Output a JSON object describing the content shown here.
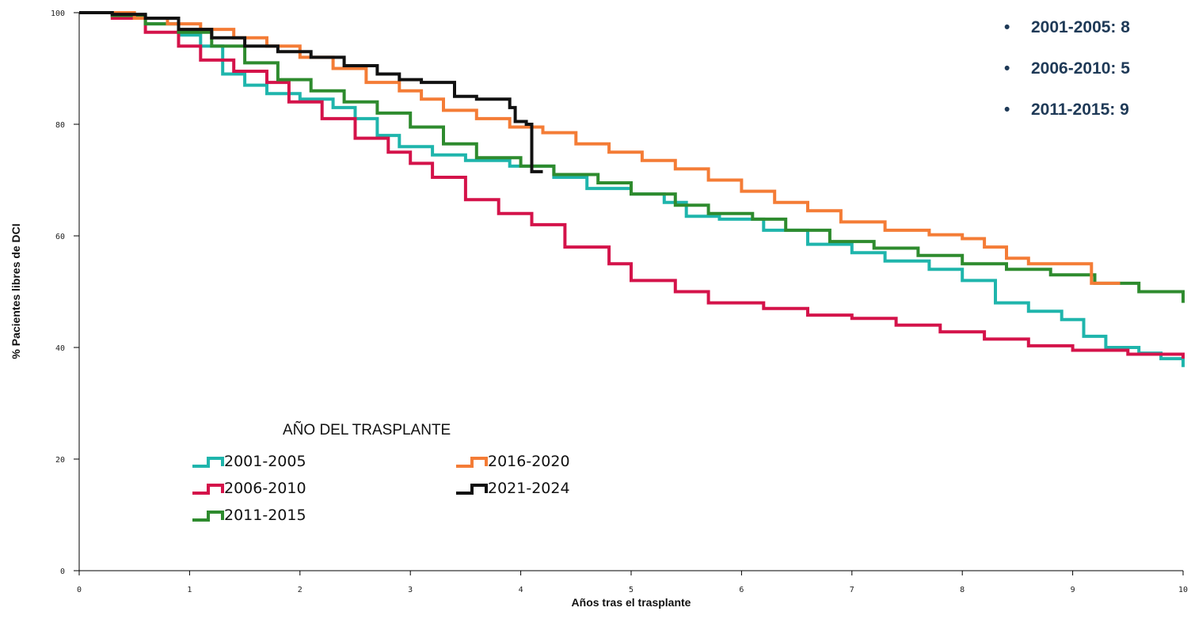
{
  "chart_data": {
    "type": "line",
    "title": "",
    "xlabel": "Años tras el trasplante",
    "ylabel": "% Pacientes libres de DCI",
    "xlim": [
      0,
      10
    ],
    "ylim": [
      0,
      100
    ],
    "x_ticks": [
      "0",
      "1",
      "2",
      "3",
      "4",
      "5",
      "6",
      "7",
      "8",
      "9",
      "10"
    ],
    "y_ticks": [
      "0",
      "20",
      "40",
      "60",
      "80",
      "100"
    ],
    "grid": false,
    "step": true,
    "legend": {
      "title": "AÑO DEL TRASPLANTE",
      "placement": "bottom-left",
      "columns": [
        [
          "2001-2005",
          "2006-2010",
          "2011-2015"
        ],
        [
          "2016-2020",
          "2021-2024"
        ]
      ]
    },
    "series": [
      {
        "name": "2001-2005",
        "color": "#1fb5ac",
        "points": [
          [
            0,
            100
          ],
          [
            0.3,
            99.5
          ],
          [
            0.6,
            98
          ],
          [
            0.9,
            96
          ],
          [
            1.1,
            94
          ],
          [
            1.3,
            89
          ],
          [
            1.5,
            87
          ],
          [
            1.7,
            85.5
          ],
          [
            2.0,
            84.5
          ],
          [
            2.3,
            83
          ],
          [
            2.5,
            81
          ],
          [
            2.7,
            78
          ],
          [
            2.9,
            76
          ],
          [
            3.2,
            74.5
          ],
          [
            3.5,
            73.5
          ],
          [
            3.9,
            72.5
          ],
          [
            4.3,
            70.5
          ],
          [
            4.6,
            68.5
          ],
          [
            5.0,
            67.5
          ],
          [
            5.3,
            66
          ],
          [
            5.5,
            63.5
          ],
          [
            5.8,
            63
          ],
          [
            6.2,
            61
          ],
          [
            6.6,
            58.5
          ],
          [
            7.0,
            57
          ],
          [
            7.3,
            55.5
          ],
          [
            7.7,
            54
          ],
          [
            8.0,
            52
          ],
          [
            8.3,
            48
          ],
          [
            8.6,
            46.5
          ],
          [
            8.9,
            45
          ],
          [
            9.1,
            42
          ],
          [
            9.3,
            40
          ],
          [
            9.6,
            39
          ],
          [
            9.8,
            38
          ],
          [
            10,
            36.5
          ]
        ]
      },
      {
        "name": "2006-2010",
        "color": "#d4134a",
        "points": [
          [
            0,
            100
          ],
          [
            0.3,
            99
          ],
          [
            0.6,
            96.5
          ],
          [
            0.9,
            94
          ],
          [
            1.1,
            91.5
          ],
          [
            1.4,
            89.5
          ],
          [
            1.7,
            87.5
          ],
          [
            1.9,
            84
          ],
          [
            2.2,
            81
          ],
          [
            2.5,
            77.5
          ],
          [
            2.8,
            75
          ],
          [
            3.0,
            73
          ],
          [
            3.2,
            70.5
          ],
          [
            3.5,
            66.5
          ],
          [
            3.8,
            64
          ],
          [
            4.1,
            62
          ],
          [
            4.4,
            58
          ],
          [
            4.8,
            55
          ],
          [
            5.0,
            52
          ],
          [
            5.4,
            50
          ],
          [
            5.7,
            48
          ],
          [
            6.2,
            47
          ],
          [
            6.6,
            45.8
          ],
          [
            7.0,
            45.2
          ],
          [
            7.4,
            44
          ],
          [
            7.8,
            42.8
          ],
          [
            8.2,
            41.5
          ],
          [
            8.6,
            40.3
          ],
          [
            9.0,
            39.5
          ],
          [
            9.5,
            38.8
          ],
          [
            10,
            38
          ]
        ]
      },
      {
        "name": "2011-2015",
        "color": "#2e8b2e",
        "points": [
          [
            0,
            100
          ],
          [
            0.3,
            99.5
          ],
          [
            0.6,
            98
          ],
          [
            0.9,
            96.5
          ],
          [
            1.2,
            94
          ],
          [
            1.5,
            91
          ],
          [
            1.8,
            88
          ],
          [
            2.1,
            86
          ],
          [
            2.4,
            84
          ],
          [
            2.7,
            82
          ],
          [
            3.0,
            79.5
          ],
          [
            3.3,
            76.5
          ],
          [
            3.6,
            74
          ],
          [
            4.0,
            72.5
          ],
          [
            4.3,
            71
          ],
          [
            4.7,
            69.5
          ],
          [
            5.0,
            67.5
          ],
          [
            5.4,
            65.5
          ],
          [
            5.7,
            64
          ],
          [
            6.1,
            63
          ],
          [
            6.4,
            61
          ],
          [
            6.8,
            59
          ],
          [
            7.2,
            57.8
          ],
          [
            7.6,
            56.5
          ],
          [
            8.0,
            55
          ],
          [
            8.4,
            54
          ],
          [
            8.8,
            53
          ],
          [
            9.2,
            51.5
          ],
          [
            9.6,
            50
          ],
          [
            10,
            48
          ]
        ]
      },
      {
        "name": "2016-2020",
        "color": "#f47c36",
        "points": [
          [
            0,
            100
          ],
          [
            0.5,
            99
          ],
          [
            0.8,
            98
          ],
          [
            1.1,
            97
          ],
          [
            1.4,
            95.5
          ],
          [
            1.7,
            94
          ],
          [
            2.0,
            92
          ],
          [
            2.3,
            90
          ],
          [
            2.6,
            87.5
          ],
          [
            2.9,
            86
          ],
          [
            3.1,
            84.5
          ],
          [
            3.3,
            82.5
          ],
          [
            3.6,
            81
          ],
          [
            3.9,
            79.5
          ],
          [
            4.2,
            78.5
          ],
          [
            4.5,
            76.5
          ],
          [
            4.8,
            75
          ],
          [
            5.1,
            73.5
          ],
          [
            5.4,
            72
          ],
          [
            5.7,
            70
          ],
          [
            6.0,
            68
          ],
          [
            6.3,
            66
          ],
          [
            6.6,
            64.5
          ],
          [
            6.9,
            62.5
          ],
          [
            7.3,
            61
          ],
          [
            7.7,
            60.2
          ],
          [
            8.0,
            59.5
          ],
          [
            8.2,
            58
          ],
          [
            8.4,
            56
          ],
          [
            8.6,
            55
          ],
          [
            9.0,
            55
          ],
          [
            9.17,
            51.5
          ],
          [
            9.43,
            51.5
          ]
        ]
      },
      {
        "name": "2021-2024",
        "color": "#111111",
        "points": [
          [
            0,
            100
          ],
          [
            0.3,
            99.7
          ],
          [
            0.6,
            99
          ],
          [
            0.9,
            97
          ],
          [
            1.2,
            95.5
          ],
          [
            1.5,
            94
          ],
          [
            1.8,
            93
          ],
          [
            2.1,
            92
          ],
          [
            2.4,
            90.5
          ],
          [
            2.7,
            89
          ],
          [
            2.9,
            88
          ],
          [
            3.1,
            87.5
          ],
          [
            3.4,
            85
          ],
          [
            3.6,
            84.5
          ],
          [
            3.8,
            84.5
          ],
          [
            3.9,
            83
          ],
          [
            3.95,
            80.5
          ],
          [
            4.05,
            80
          ],
          [
            4.1,
            71.5
          ],
          [
            4.2,
            71.5
          ]
        ]
      }
    ]
  },
  "bullets": [
    {
      "text": "2001-2005: 8"
    },
    {
      "text": "2006-2010: 5"
    },
    {
      "text": "2011-2015: 9"
    }
  ]
}
